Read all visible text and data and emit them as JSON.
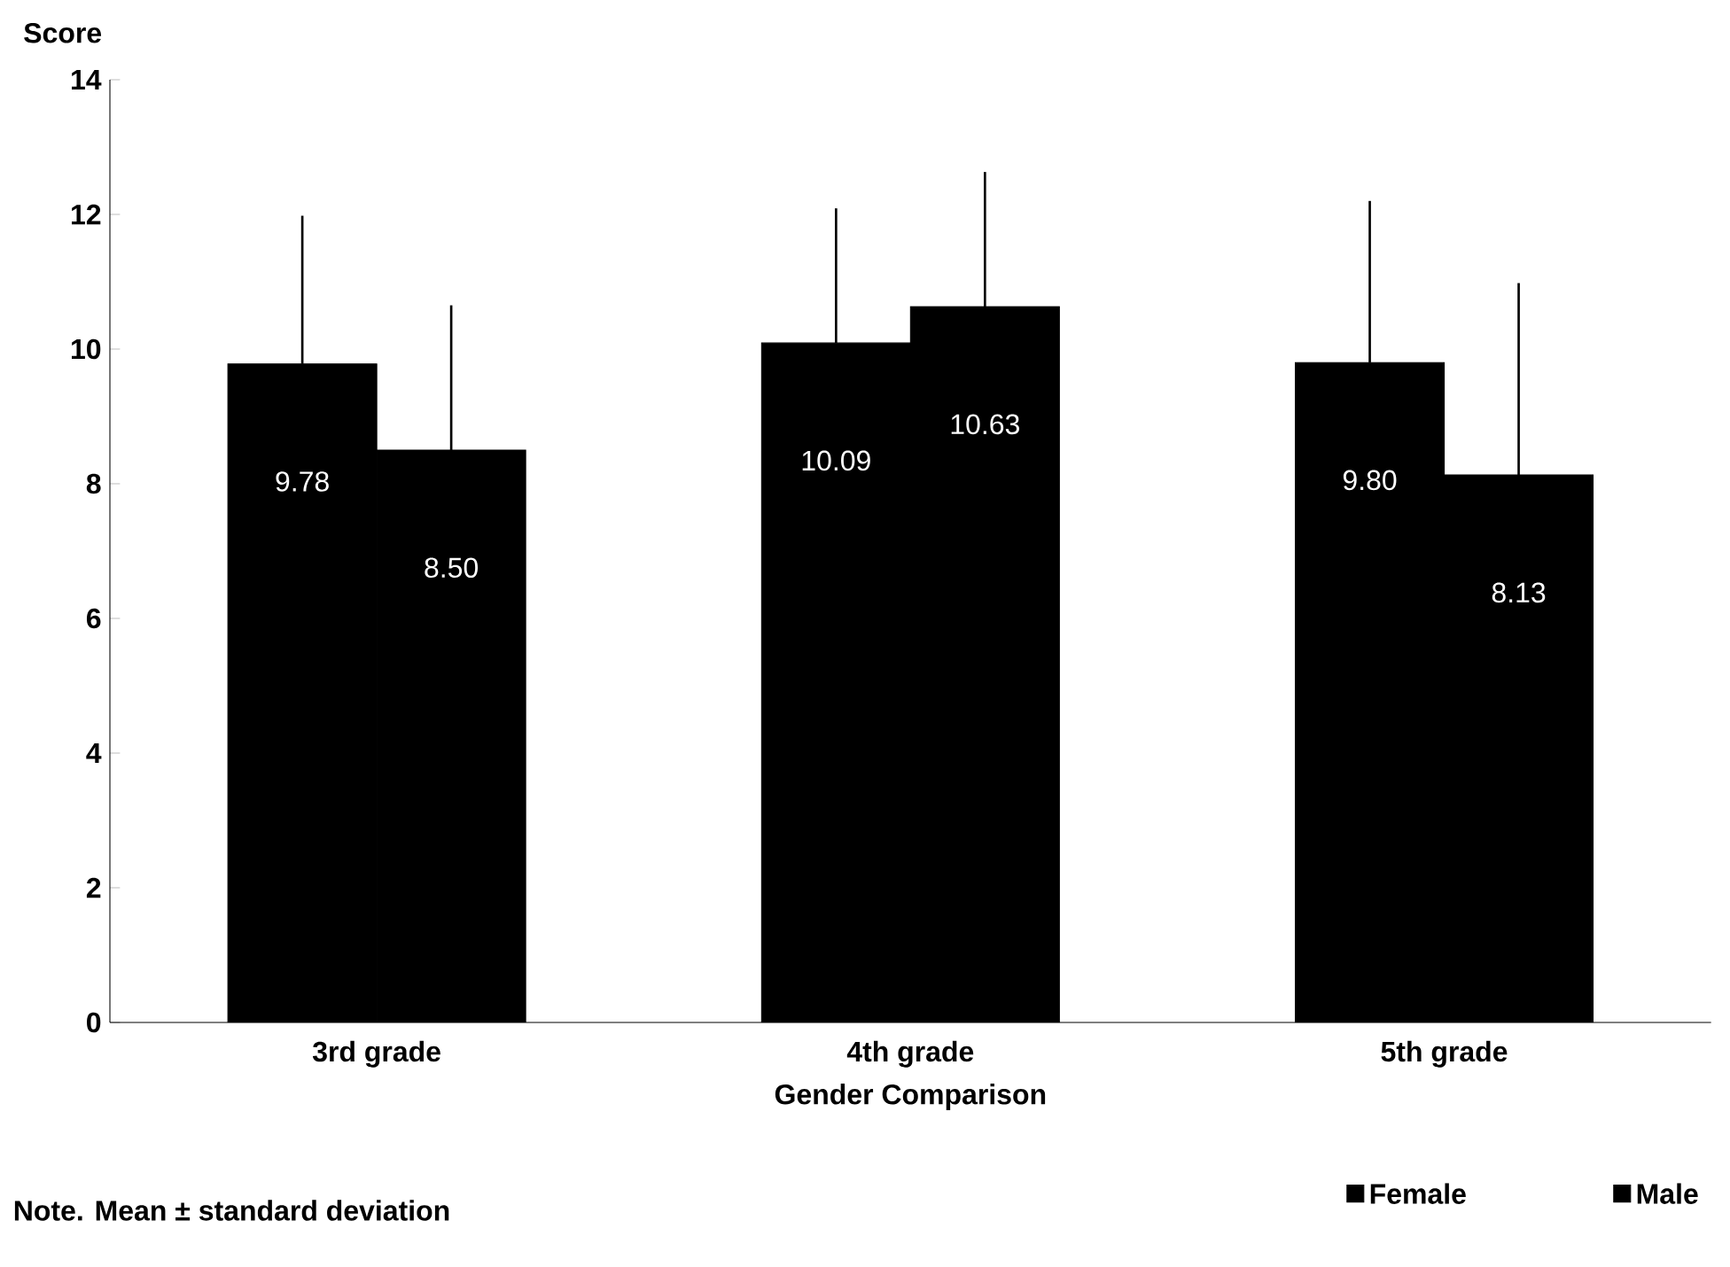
{
  "chart_data": {
    "type": "bar",
    "ylabel": "Score",
    "xlabel": "Gender Comparison",
    "categories": [
      "3rd grade",
      "4th grade",
      "5th grade"
    ],
    "series": [
      {
        "name": "Female",
        "color": "#000000",
        "values": [
          9.78,
          10.09,
          9.8
        ],
        "errors": [
          [
            9.78,
            11.98
          ],
          [
            10.09,
            12.09
          ],
          [
            9.8,
            12.2
          ]
        ],
        "value_labels": [
          "9.78",
          "10.09",
          "9.80"
        ]
      },
      {
        "name": "Male",
        "color": "#000000",
        "values": [
          8.5,
          10.63,
          8.13
        ],
        "errors": [
          [
            8.5,
            10.65
          ],
          [
            10.63,
            12.63
          ],
          [
            8.13,
            10.98
          ]
        ],
        "value_labels": [
          "8.50",
          "10.63",
          "8.13"
        ]
      }
    ],
    "ylim": [
      0,
      14
    ],
    "yticks": [
      0,
      2,
      4,
      6,
      8,
      10,
      12,
      14
    ],
    "legend": "bottom right",
    "annotations": [
      "Note.  Mean ± standard deviation"
    ]
  }
}
